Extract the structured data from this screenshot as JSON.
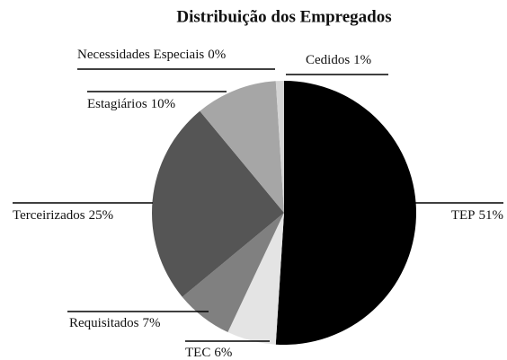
{
  "chart_data": {
    "type": "pie",
    "title": "Distribuição dos Empregados",
    "categories": [
      "TEP",
      "TEC",
      "Requisitados",
      "Terceirizados",
      "Estagiários",
      "Necessidades Especiais",
      "Cedidos"
    ],
    "values": [
      51,
      6,
      7,
      25,
      10,
      0,
      1
    ],
    "value_labels": [
      "51%",
      "6%",
      "7%",
      "25%",
      "10%",
      "0%",
      "1%"
    ],
    "colors": [
      "#000000",
      "#e4e4e4",
      "#808080",
      "#555555",
      "#a6a6a6",
      "#333333",
      "#d4d4d4"
    ]
  }
}
